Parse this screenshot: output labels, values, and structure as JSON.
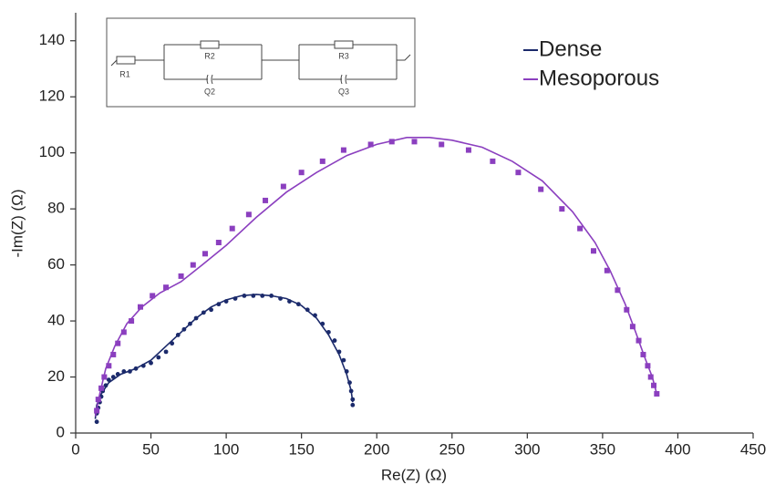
{
  "chart_data": {
    "type": "scatter",
    "xlabel": "Re(Z) (Ω)",
    "ylabel": "-Im(Z) (Ω)",
    "xlim": [
      0,
      450
    ],
    "xticks": [
      0,
      50,
      100,
      150,
      200,
      250,
      300,
      350,
      400,
      450
    ],
    "ylim": [
      0,
      150
    ],
    "yticks": [
      0,
      20,
      40,
      60,
      80,
      100,
      120,
      140
    ],
    "legend": "upper right",
    "inset_labels": [
      "R1",
      "R2",
      "Q2",
      "R3",
      "Q3"
    ],
    "series": [
      {
        "name": "Dense",
        "color": "#1b2a6b",
        "marker": "circle",
        "x": [
          14,
          14,
          15,
          16,
          17,
          18,
          20,
          22,
          25,
          28,
          32,
          36,
          40,
          45,
          50,
          55,
          60,
          64,
          68,
          72,
          76,
          80,
          85,
          90,
          95,
          100,
          106,
          112,
          118,
          124,
          130,
          136,
          142,
          148,
          154,
          159,
          164,
          168,
          172,
          175,
          178,
          180,
          182,
          183,
          184,
          184
        ],
        "values": [
          4,
          7,
          9,
          11,
          13,
          15,
          17,
          19,
          20,
          21,
          22,
          22,
          23,
          24,
          25,
          27,
          29,
          32,
          35,
          37,
          39,
          41,
          43,
          44,
          46,
          47,
          48,
          49,
          49,
          49,
          49,
          48,
          47,
          46,
          44,
          42,
          39,
          36,
          33,
          29,
          26,
          22,
          18,
          15,
          12,
          10
        ],
        "fit": {
          "x": [
            13,
            14,
            17,
            22,
            30,
            40,
            50,
            60,
            70,
            80,
            90,
            100,
            110,
            120,
            130,
            140,
            150,
            160,
            168,
            175,
            180,
            183,
            184
          ],
          "values": [
            5,
            10,
            14,
            18,
            21,
            23,
            26,
            31,
            36,
            41,
            45,
            47.5,
            49,
            49.5,
            49,
            48,
            45.5,
            41,
            35,
            28,
            21,
            15,
            11
          ]
        }
      },
      {
        "name": "Mesoporous",
        "color": "#8b3fbf",
        "marker": "square",
        "x": [
          14,
          15,
          17,
          19,
          22,
          25,
          28,
          32,
          37,
          43,
          51,
          60,
          70,
          78,
          86,
          95,
          104,
          115,
          126,
          138,
          150,
          164,
          178,
          196,
          210,
          225,
          243,
          261,
          277,
          294,
          309,
          323,
          335,
          344,
          353,
          360,
          366,
          370,
          374,
          377,
          380,
          382,
          384,
          386
        ],
        "values": [
          8,
          12,
          16,
          20,
          24,
          28,
          32,
          36,
          40,
          45,
          49,
          52,
          56,
          60,
          64,
          68,
          73,
          78,
          83,
          88,
          93,
          97,
          101,
          103,
          104,
          104,
          103,
          101,
          97,
          93,
          87,
          80,
          73,
          65,
          58,
          51,
          44,
          38,
          33,
          28,
          24,
          20,
          17,
          14
        ],
        "fit": {
          "x": [
            13,
            16,
            20,
            26,
            34,
            44,
            56,
            70,
            84,
            100,
            120,
            140,
            160,
            180,
            200,
            220,
            235,
            250,
            270,
            290,
            310,
            330,
            345,
            355,
            365,
            372,
            378,
            383,
            386
          ],
          "values": [
            6,
            14,
            23,
            31,
            39,
            45,
            50,
            54,
            60,
            67,
            77,
            86,
            93,
            99,
            103,
            105.5,
            105.5,
            104.5,
            102,
            97,
            90,
            79,
            68,
            58,
            46,
            36,
            27,
            20,
            14
          ]
        }
      }
    ]
  }
}
